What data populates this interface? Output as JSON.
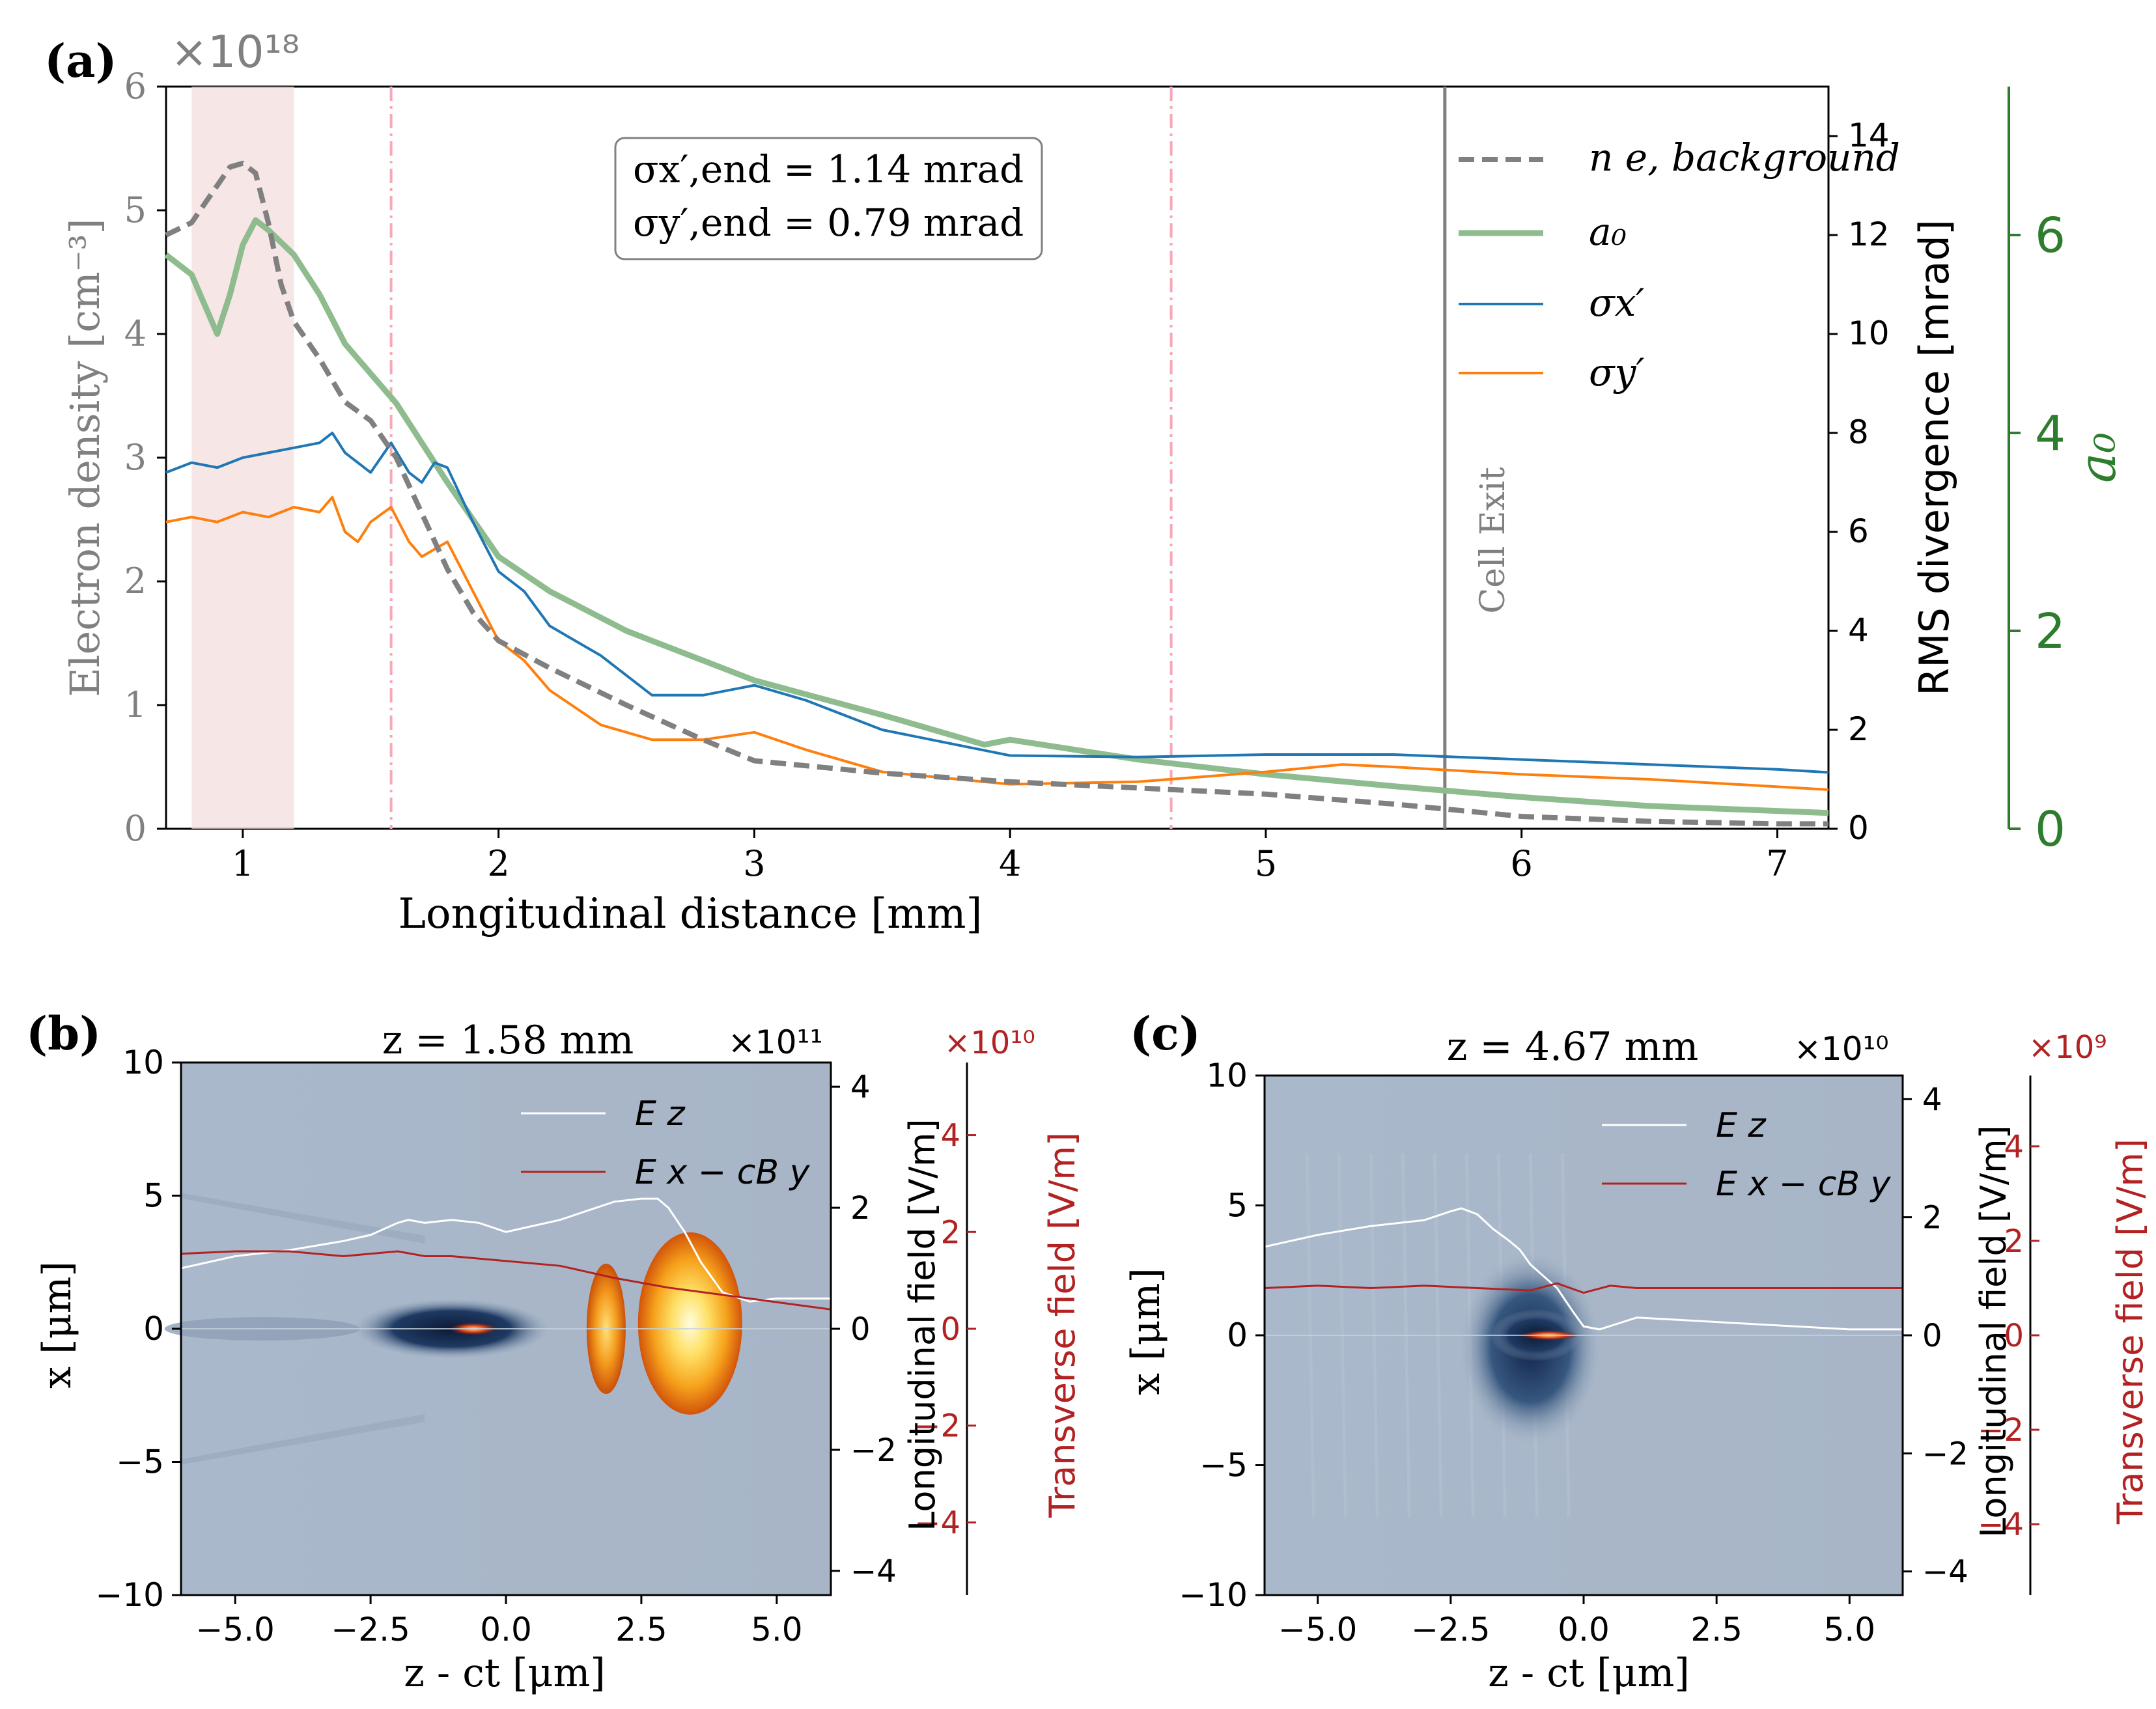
{
  "colors": {
    "gray": "#808080",
    "green": "#2e7d2e",
    "green_line": "#8fbc8f",
    "blue": "#1f77b4",
    "orange": "#ff7f0e",
    "red": "#b22222",
    "pink_shade": "#f2dcdc",
    "pink_vline": "#f7a8b8",
    "plasma_bg": "#a8b6c8",
    "dark_blue": "#1a2f4f"
  },
  "chart_data": [
    {
      "id": "a",
      "panel_label": "(a)",
      "type": "line",
      "xlabel": "Longitudinal distance [mm]",
      "xlim": [
        0.7,
        7.2
      ],
      "x_ticks": [
        1,
        2,
        3,
        4,
        5,
        6,
        7
      ],
      "left_axis": {
        "label": "Electron density [cm⁻³]",
        "multiplier": "×10¹⁸",
        "ylim": [
          0,
          6
        ],
        "ticks": [
          0,
          1,
          2,
          3,
          4,
          5,
          6
        ]
      },
      "right_axis": {
        "label": "RMS divergence [mrad]",
        "ylim": [
          0,
          15
        ],
        "ticks": [
          0,
          2,
          4,
          6,
          8,
          10,
          12,
          14
        ]
      },
      "far_right_axis": {
        "label": "a₀",
        "ylim": [
          0,
          7.5
        ],
        "ticks": [
          0,
          2,
          4,
          6
        ]
      },
      "shaded_region": [
        0.8,
        1.2
      ],
      "vlines_dashdot": [
        1.58,
        4.63
      ],
      "vline_solid": {
        "x": 5.7,
        "label": "Cell Exit"
      },
      "annotation": [
        "σx′,end = 1.14 mrad",
        "σy′,end = 0.79 mrad"
      ],
      "legend": [
        {
          "label": "n e, background",
          "series": "ne"
        },
        {
          "label": "a₀",
          "series": "a0"
        },
        {
          "label": "σx′",
          "series": "sx"
        },
        {
          "label": "σy′",
          "series": "sy"
        }
      ],
      "series": [
        {
          "name": "n_e, background",
          "axis": "left",
          "style": "dashed",
          "x": [
            0.7,
            0.8,
            0.85,
            0.9,
            0.95,
            1.0,
            1.05,
            1.1,
            1.15,
            1.2,
            1.3,
            1.4,
            1.5,
            1.6,
            1.7,
            1.8,
            1.9,
            2.0,
            2.2,
            2.5,
            2.8,
            3.0,
            3.5,
            4.0,
            4.5,
            5.0,
            5.5,
            6.0,
            6.5,
            7.0,
            7.2
          ],
          "values": [
            4.8,
            4.9,
            5.05,
            5.2,
            5.35,
            5.38,
            5.3,
            4.9,
            4.4,
            4.1,
            3.8,
            3.45,
            3.3,
            3.0,
            2.55,
            2.1,
            1.75,
            1.52,
            1.3,
            1.0,
            0.72,
            0.55,
            0.45,
            0.38,
            0.33,
            0.28,
            0.2,
            0.1,
            0.06,
            0.04,
            0.04
          ]
        },
        {
          "name": "a0",
          "axis": "far_right",
          "style": "solid",
          "x": [
            0.7,
            0.8,
            0.85,
            0.9,
            0.95,
            1.0,
            1.05,
            1.1,
            1.2,
            1.3,
            1.4,
            1.5,
            1.6,
            1.8,
            2.0,
            2.2,
            2.5,
            2.8,
            3.0,
            3.5,
            3.9,
            4.0,
            4.5,
            5.0,
            5.5,
            6.0,
            6.5,
            7.0,
            7.2
          ],
          "values": [
            5.8,
            5.6,
            5.3,
            5.0,
            5.4,
            5.9,
            6.15,
            6.05,
            5.8,
            5.4,
            4.9,
            4.6,
            4.3,
            3.5,
            2.75,
            2.4,
            2.0,
            1.7,
            1.5,
            1.15,
            0.85,
            0.9,
            0.7,
            0.55,
            0.43,
            0.32,
            0.23,
            0.18,
            0.16
          ]
        },
        {
          "name": "sigma_x'",
          "axis": "right",
          "style": "solid",
          "x": [
            0.7,
            0.8,
            0.9,
            1.0,
            1.1,
            1.2,
            1.3,
            1.35,
            1.4,
            1.5,
            1.58,
            1.65,
            1.7,
            1.75,
            1.8,
            1.9,
            2.0,
            2.1,
            2.2,
            2.4,
            2.6,
            2.8,
            3.0,
            3.2,
            3.5,
            4.0,
            4.5,
            5.0,
            5.5,
            6.0,
            6.5,
            7.0,
            7.2
          ],
          "values": [
            7.2,
            7.4,
            7.3,
            7.5,
            7.6,
            7.7,
            7.8,
            8.0,
            7.6,
            7.2,
            7.8,
            7.2,
            7.0,
            7.4,
            7.3,
            6.2,
            5.2,
            4.8,
            4.1,
            3.5,
            2.7,
            2.7,
            2.9,
            2.6,
            2.0,
            1.48,
            1.45,
            1.5,
            1.5,
            1.4,
            1.3,
            1.2,
            1.14
          ]
        },
        {
          "name": "sigma_y'",
          "axis": "right",
          "style": "solid",
          "x": [
            0.7,
            0.8,
            0.9,
            1.0,
            1.1,
            1.2,
            1.3,
            1.35,
            1.4,
            1.45,
            1.5,
            1.58,
            1.65,
            1.7,
            1.8,
            1.9,
            2.0,
            2.1,
            2.2,
            2.4,
            2.6,
            2.8,
            3.0,
            3.2,
            3.5,
            4.0,
            4.5,
            5.0,
            5.3,
            5.5,
            6.0,
            6.5,
            7.0,
            7.2
          ],
          "values": [
            6.2,
            6.3,
            6.2,
            6.4,
            6.3,
            6.5,
            6.4,
            6.7,
            6.0,
            5.8,
            6.2,
            6.5,
            5.8,
            5.5,
            5.8,
            4.8,
            3.8,
            3.4,
            2.8,
            2.1,
            1.8,
            1.8,
            1.95,
            1.6,
            1.15,
            0.9,
            0.95,
            1.15,
            1.3,
            1.25,
            1.1,
            1.0,
            0.85,
            0.79
          ]
        }
      ]
    },
    {
      "id": "b",
      "panel_label": "(b)",
      "type": "heatmap",
      "title": "z = 1.58 mm",
      "xlabel": "z - ct [μm]",
      "ylabel": "x [μm]",
      "xlim": [
        -6,
        6
      ],
      "ylim": [
        -10,
        10
      ],
      "x_ticks": [
        -5.0,
        -2.5,
        0.0,
        2.5,
        5.0
      ],
      "y_ticks": [
        -10,
        -5,
        0,
        5,
        10
      ],
      "long_axis": {
        "label": "Longitudinal field [V/m]",
        "multiplier": "×10¹¹",
        "ylim": [
          -4.4,
          4.4
        ],
        "ticks": [
          -4,
          -2,
          0,
          2,
          4
        ]
      },
      "trans_axis": {
        "label": "Transverse field [V/m]",
        "multiplier": "×10¹⁰",
        "ylim": [
          -5.5,
          5.5
        ],
        "ticks": [
          -4,
          -2,
          0,
          2,
          4
        ]
      },
      "legend": [
        {
          "label": "E z",
          "series": "Ez"
        },
        {
          "label": "E x − cB y",
          "series": "Ex"
        }
      ],
      "series": [
        {
          "name": "Ez",
          "axis": "long",
          "x": [
            -6.0,
            -5.0,
            -4.0,
            -3.0,
            -2.5,
            -2.0,
            -1.8,
            -1.5,
            -1.0,
            -0.5,
            0.0,
            0.5,
            1.0,
            1.5,
            2.0,
            2.5,
            2.8,
            3.0,
            3.3,
            3.6,
            4.0,
            4.5,
            5.0,
            5.5,
            6.0
          ],
          "values": [
            1.0,
            1.2,
            1.3,
            1.45,
            1.55,
            1.75,
            1.8,
            1.75,
            1.8,
            1.75,
            1.6,
            1.7,
            1.8,
            1.95,
            2.1,
            2.15,
            2.15,
            2.0,
            1.6,
            1.1,
            0.6,
            0.45,
            0.5,
            0.5,
            0.5
          ]
        },
        {
          "name": "Ex - cBy",
          "axis": "trans",
          "x": [
            -6.0,
            -5.0,
            -4.0,
            -3.0,
            -2.5,
            -2.0,
            -1.5,
            -1.0,
            0.0,
            1.0,
            2.0,
            3.0,
            4.0,
            5.0,
            6.0
          ],
          "values": [
            1.55,
            1.6,
            1.6,
            1.5,
            1.55,
            1.6,
            1.5,
            1.5,
            1.4,
            1.3,
            1.05,
            0.85,
            0.7,
            0.55,
            0.4
          ]
        }
      ]
    },
    {
      "id": "c",
      "panel_label": "(c)",
      "type": "heatmap",
      "title": "z = 4.67 mm",
      "xlabel": "z - ct [μm]",
      "ylabel": "x [μm]",
      "xlim": [
        -6,
        6
      ],
      "ylim": [
        -10,
        10
      ],
      "x_ticks": [
        -5.0,
        -2.5,
        0.0,
        2.5,
        5.0
      ],
      "y_ticks": [
        -10,
        -5,
        0,
        5,
        10
      ],
      "long_axis": {
        "label": "Longitudinal field [V/m]",
        "multiplier": "×10¹⁰",
        "ylim": [
          -4.4,
          4.4
        ],
        "ticks": [
          -4,
          -2,
          0,
          2,
          4
        ]
      },
      "trans_axis": {
        "label": "Transverse field [V/m]",
        "multiplier": "×10⁹",
        "ylim": [
          -5.5,
          5.5
        ],
        "ticks": [
          -4,
          -2,
          0,
          2,
          4
        ]
      },
      "legend": [
        {
          "label": "E z",
          "series": "Ez"
        },
        {
          "label": "E x − cB y",
          "series": "Ex"
        }
      ],
      "series": [
        {
          "name": "Ez",
          "axis": "long",
          "x": [
            -6.0,
            -5.0,
            -4.0,
            -3.0,
            -2.5,
            -2.3,
            -2.0,
            -1.7,
            -1.4,
            -1.2,
            -1.0,
            -0.5,
            -0.2,
            0.0,
            0.3,
            1.0,
            2.0,
            3.0,
            4.0,
            5.0,
            6.0
          ],
          "values": [
            1.5,
            1.7,
            1.85,
            1.95,
            2.1,
            2.15,
            2.05,
            1.8,
            1.6,
            1.45,
            1.2,
            0.8,
            0.4,
            0.15,
            0.1,
            0.3,
            0.25,
            0.2,
            0.15,
            0.1,
            0.1
          ]
        },
        {
          "name": "Ex - cBy",
          "axis": "trans",
          "x": [
            -6.0,
            -5.0,
            -4.0,
            -3.0,
            -2.0,
            -1.0,
            -0.5,
            0.0,
            0.5,
            1.0,
            2.0,
            3.0,
            4.0,
            5.0,
            6.0
          ],
          "values": [
            1.0,
            1.05,
            1.0,
            1.05,
            1.0,
            0.95,
            1.1,
            0.9,
            1.05,
            1.0,
            1.0,
            1.0,
            1.0,
            1.0,
            1.0
          ]
        }
      ]
    }
  ]
}
